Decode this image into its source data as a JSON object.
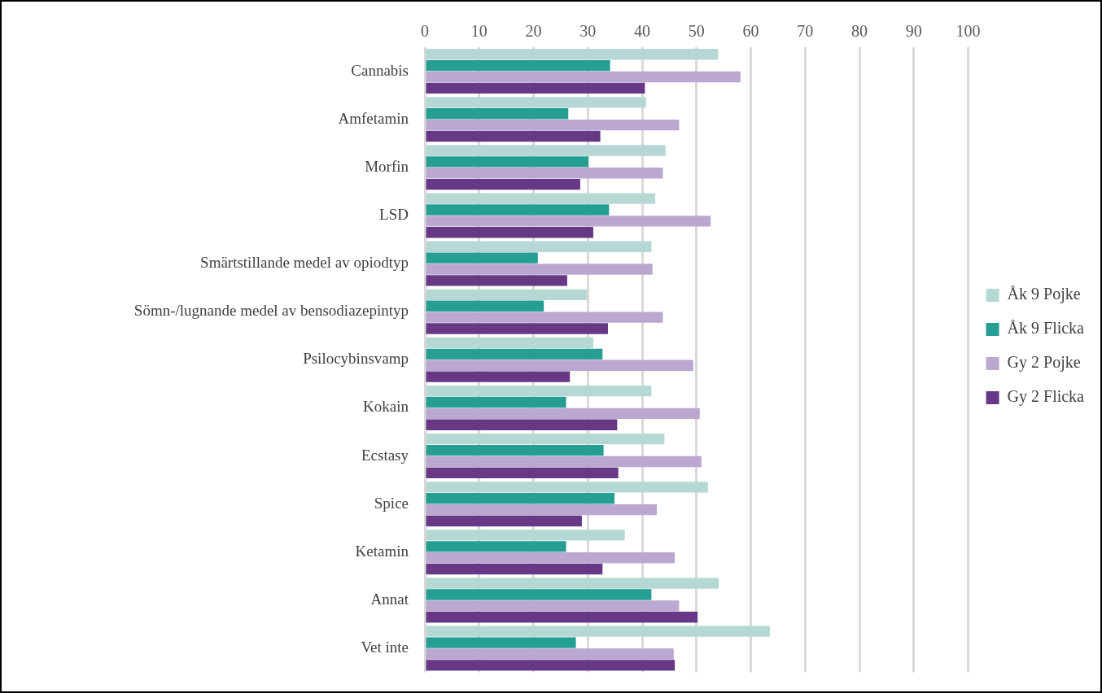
{
  "chart_data": {
    "type": "bar",
    "orientation": "horizontal",
    "categories": [
      "Cannabis",
      "Amfetamin",
      "Morfin",
      "LSD",
      "Smärtstillande medel av opiodtyp",
      "Sömn-/lugnande medel av bensodiazepintyp",
      "Psilocybinsvamp",
      "Kokain",
      "Ecstasy",
      "Spice",
      "Ketamin",
      "Annat",
      "Vet inte"
    ],
    "series": [
      {
        "name": "Åk 9 Pojke",
        "color": "#b5d8d4",
        "values": [
          54.0,
          40.7,
          44.3,
          42.4,
          41.7,
          29.8,
          31.0,
          41.7,
          44.1,
          52.1,
          36.8,
          54.1,
          63.5
        ]
      },
      {
        "name": "Åk 9 Flicka",
        "color": "#269e94",
        "values": [
          34.1,
          26.4,
          30.1,
          33.9,
          20.8,
          21.9,
          32.7,
          26.0,
          32.9,
          34.9,
          26.0,
          41.7,
          27.8
        ]
      },
      {
        "name": "Gy 2 Pojke",
        "color": "#bba8d0",
        "values": [
          58.1,
          46.8,
          43.8,
          52.6,
          41.9,
          43.8,
          49.4,
          50.6,
          50.9,
          42.7,
          46.0,
          46.8,
          45.8
        ]
      },
      {
        "name": "Gy 2 Flicka",
        "color": "#673886",
        "values": [
          40.5,
          32.3,
          28.6,
          31.0,
          26.2,
          33.7,
          26.7,
          35.4,
          35.6,
          28.9,
          32.7,
          50.2,
          46.0
        ]
      }
    ],
    "xlim": [
      0,
      100
    ],
    "xticks": [
      0,
      10,
      20,
      30,
      40,
      50,
      60,
      70,
      80,
      90,
      100
    ],
    "grid": "x",
    "legend": "right"
  }
}
